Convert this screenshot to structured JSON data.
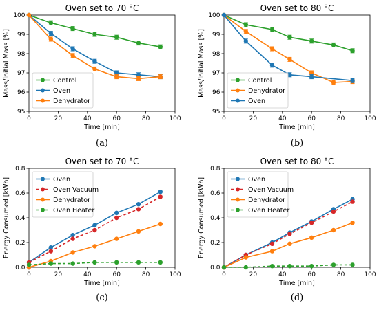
{
  "colors": {
    "blue": "#1f77b4",
    "orange": "#ff7f0e",
    "green": "#2ca02c",
    "red": "#d62728"
  },
  "chart_data": [
    {
      "id": "a",
      "panel_label": "(a)",
      "type": "line",
      "title": "Oven set to 70 °C",
      "xlabel": "Time [min]",
      "ylabel": "Mass/Initial Mass [%]",
      "xlim": [
        0,
        100
      ],
      "ylim": [
        95,
        100
      ],
      "xticks": [
        0,
        20,
        40,
        60,
        80,
        100
      ],
      "yticks": [
        95,
        96,
        97,
        98,
        99,
        100
      ],
      "legend": "bottom-left",
      "series": [
        {
          "name": "Control",
          "color": "#2ca02c",
          "marker": "circle",
          "dashed": false,
          "error_bars": true,
          "x": [
            0,
            15,
            30,
            45,
            60,
            75,
            90
          ],
          "y": [
            100,
            99.6,
            99.3,
            99.0,
            98.85,
            98.55,
            98.35
          ]
        },
        {
          "name": "Oven",
          "color": "#1f77b4",
          "marker": "circle",
          "dashed": false,
          "error_bars": true,
          "x": [
            0,
            15,
            30,
            45,
            60,
            75,
            90
          ],
          "y": [
            100,
            99.05,
            98.25,
            97.6,
            97.0,
            96.9,
            96.8
          ]
        },
        {
          "name": "Dehydrator",
          "color": "#ff7f0e",
          "marker": "circle",
          "dashed": false,
          "error_bars": true,
          "x": [
            0,
            15,
            30,
            45,
            60,
            75,
            90
          ],
          "y": [
            100,
            98.75,
            97.9,
            97.2,
            96.8,
            96.7,
            96.8
          ]
        }
      ]
    },
    {
      "id": "b",
      "panel_label": "(b)",
      "type": "line",
      "title": "Oven set to 80 °C",
      "xlabel": "Time [min]",
      "ylabel": "Mass/Initial Mass [%]",
      "xlim": [
        0,
        100
      ],
      "ylim": [
        95,
        100
      ],
      "xticks": [
        0,
        20,
        40,
        60,
        80,
        100
      ],
      "yticks": [
        95,
        96,
        97,
        98,
        99,
        100
      ],
      "legend": "bottom-left",
      "series": [
        {
          "name": "Control",
          "color": "#2ca02c",
          "marker": "circle",
          "dashed": false,
          "error_bars": true,
          "x": [
            0,
            15,
            33,
            45,
            60,
            75,
            88
          ],
          "y": [
            100,
            99.5,
            99.25,
            98.85,
            98.65,
            98.45,
            98.15
          ]
        },
        {
          "name": "Dehydrator",
          "color": "#ff7f0e",
          "marker": "circle",
          "dashed": false,
          "error_bars": true,
          "x": [
            0,
            15,
            33,
            45,
            60,
            75,
            88
          ],
          "y": [
            100,
            99.15,
            98.25,
            97.7,
            97.0,
            96.5,
            96.55
          ]
        },
        {
          "name": "Oven",
          "color": "#1f77b4",
          "marker": "circle",
          "dashed": false,
          "error_bars": true,
          "x": [
            0,
            15,
            33,
            45,
            60,
            88
          ],
          "y": [
            100,
            98.65,
            97.4,
            96.9,
            96.8,
            96.6
          ]
        }
      ]
    },
    {
      "id": "c",
      "panel_label": "(c)",
      "type": "line",
      "title": "Oven set to 70 °C",
      "xlabel": "Time [min]",
      "ylabel": "Energy Consumed [kWh]",
      "xlim": [
        0,
        100
      ],
      "ylim": [
        0,
        0.8
      ],
      "xticks": [
        0,
        20,
        40,
        60,
        80,
        100
      ],
      "yticks": [
        0.0,
        0.2,
        0.4,
        0.6,
        0.8
      ],
      "legend": "top-left",
      "series": [
        {
          "name": "Oven",
          "color": "#1f77b4",
          "marker": "circle",
          "dashed": false,
          "error_bars": false,
          "x": [
            0,
            15,
            30,
            45,
            60,
            75,
            90
          ],
          "y": [
            0.04,
            0.16,
            0.26,
            0.34,
            0.44,
            0.51,
            0.61
          ]
        },
        {
          "name": "Oven Vacuum",
          "color": "#d62728",
          "marker": "circle",
          "dashed": true,
          "error_bars": false,
          "x": [
            0,
            15,
            30,
            45,
            60,
            75,
            90
          ],
          "y": [
            0.04,
            0.13,
            0.23,
            0.3,
            0.4,
            0.47,
            0.57
          ]
        },
        {
          "name": "Dehydrator",
          "color": "#ff7f0e",
          "marker": "circle",
          "dashed": false,
          "error_bars": false,
          "x": [
            0,
            15,
            30,
            45,
            60,
            75,
            90
          ],
          "y": [
            0.0,
            0.05,
            0.12,
            0.17,
            0.23,
            0.29,
            0.35
          ]
        },
        {
          "name": "Oven Heater",
          "color": "#2ca02c",
          "marker": "circle",
          "dashed": true,
          "error_bars": false,
          "x": [
            0,
            15,
            30,
            45,
            60,
            75,
            90
          ],
          "y": [
            0.02,
            0.03,
            0.03,
            0.04,
            0.04,
            0.04,
            0.04
          ]
        }
      ]
    },
    {
      "id": "d",
      "panel_label": "(d)",
      "type": "line",
      "title": "Oven set to 80 °C",
      "xlabel": "Time [min]",
      "ylabel": "Energy Consumed [kWh]",
      "xlim": [
        0,
        100
      ],
      "ylim": [
        0,
        0.8
      ],
      "xticks": [
        0,
        20,
        40,
        60,
        80,
        100
      ],
      "yticks": [
        0.0,
        0.2,
        0.4,
        0.6,
        0.8
      ],
      "legend": "top-left",
      "series": [
        {
          "name": "Oven",
          "color": "#1f77b4",
          "marker": "circle",
          "dashed": false,
          "error_bars": false,
          "x": [
            0,
            15,
            33,
            45,
            60,
            75,
            88
          ],
          "y": [
            0.0,
            0.1,
            0.2,
            0.28,
            0.37,
            0.47,
            0.55
          ]
        },
        {
          "name": "Oven Vacuum",
          "color": "#d62728",
          "marker": "circle",
          "dashed": true,
          "error_bars": false,
          "x": [
            0,
            15,
            33,
            45,
            60,
            75,
            88
          ],
          "y": [
            0.0,
            0.1,
            0.19,
            0.27,
            0.36,
            0.45,
            0.53
          ]
        },
        {
          "name": "Dehydrator",
          "color": "#ff7f0e",
          "marker": "circle",
          "dashed": false,
          "error_bars": false,
          "x": [
            0,
            15,
            33,
            45,
            60,
            75,
            88
          ],
          "y": [
            0.0,
            0.08,
            0.13,
            0.19,
            0.24,
            0.3,
            0.36
          ]
        },
        {
          "name": "Oven Heater",
          "color": "#2ca02c",
          "marker": "circle",
          "dashed": true,
          "error_bars": false,
          "x": [
            0,
            15,
            33,
            45,
            60,
            75,
            88
          ],
          "y": [
            0.0,
            0.0,
            0.01,
            0.01,
            0.01,
            0.02,
            0.02
          ]
        }
      ]
    }
  ]
}
